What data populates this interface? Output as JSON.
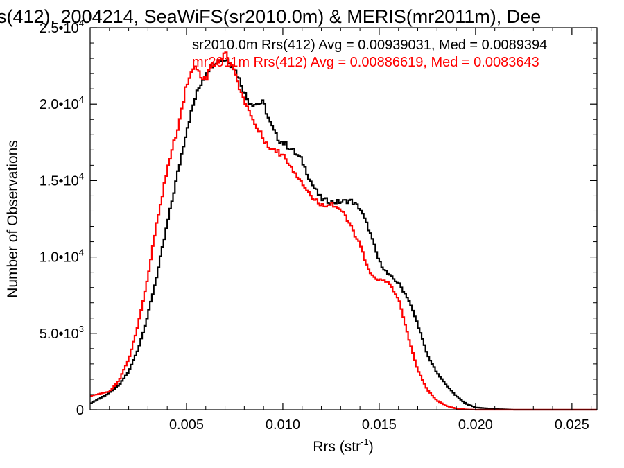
{
  "chart_data": {
    "type": "line",
    "title": "s(412), 2004214, SeaWiFS(sr2010.0m) & MERIS(mr2011m), Dee",
    "xlabel": "Rrs (str",
    "xlabel_sup": "-1",
    "xlabel_tail": ")",
    "ylabel": "Number of Observations",
    "xlim": [
      0.0,
      0.0263
    ],
    "ylim": [
      0,
      25000
    ],
    "xticks": [
      {
        "value": 0.005,
        "label": "0.005"
      },
      {
        "value": 0.01,
        "label": "0.010"
      },
      {
        "value": 0.015,
        "label": "0.015"
      },
      {
        "value": 0.02,
        "label": "0.020"
      },
      {
        "value": 0.025,
        "label": "0.025"
      }
    ],
    "yticks": [
      {
        "value": 0,
        "base": "0",
        "exp": ""
      },
      {
        "value": 5000,
        "base": "5.0•10",
        "exp": "3"
      },
      {
        "value": 10000,
        "base": "1.0•10",
        "exp": "4"
      },
      {
        "value": 15000,
        "base": "1.5•10",
        "exp": "4"
      },
      {
        "value": 20000,
        "base": "2.0•10",
        "exp": "4"
      },
      {
        "value": 25000,
        "base": "2.5•10",
        "exp": "4"
      }
    ],
    "grid": false,
    "step": true,
    "legend_position": "top-right",
    "series": [
      {
        "name": "sr2010.0m Rrs(412) Avg = 0.00939031, Med = 0.0089394",
        "color": "#000000",
        "x": [
          0.0,
          0.001,
          0.0015,
          0.002,
          0.0025,
          0.003,
          0.0035,
          0.004,
          0.0045,
          0.005,
          0.0055,
          0.006,
          0.0065,
          0.0068,
          0.0072,
          0.0075,
          0.0078,
          0.008,
          0.0082,
          0.0085,
          0.009,
          0.0093,
          0.0097,
          0.01,
          0.0105,
          0.011,
          0.0115,
          0.012,
          0.0125,
          0.013,
          0.0135,
          0.014,
          0.0145,
          0.015,
          0.0155,
          0.016,
          0.0165,
          0.017,
          0.0175,
          0.018,
          0.0185,
          0.019,
          0.0195,
          0.02,
          0.021,
          0.022,
          0.024,
          0.0263
        ],
        "y": [
          400,
          1100,
          1600,
          2500,
          4000,
          6200,
          9000,
          12100,
          15200,
          18300,
          20600,
          22100,
          22800,
          22900,
          22900,
          22300,
          21500,
          20800,
          20200,
          20000,
          20100,
          18900,
          17800,
          17500,
          17000,
          16300,
          14800,
          13800,
          13600,
          13600,
          13700,
          13200,
          11700,
          9700,
          8800,
          8300,
          7300,
          5600,
          3600,
          2400,
          1600,
          900,
          400,
          150,
          50,
          0,
          0,
          0
        ]
      },
      {
        "name": "mr2011m Rrs(412) Avg = 0.00886619, Med = 0.0083643",
        "color": "#ff0000",
        "x": [
          0.0,
          0.001,
          0.0015,
          0.002,
          0.0025,
          0.003,
          0.0035,
          0.004,
          0.0045,
          0.0048,
          0.005,
          0.0052,
          0.0055,
          0.0058,
          0.006,
          0.0063,
          0.0066,
          0.007,
          0.0073,
          0.0076,
          0.008,
          0.0085,
          0.009,
          0.0095,
          0.01,
          0.0105,
          0.011,
          0.0115,
          0.012,
          0.0125,
          0.013,
          0.0135,
          0.014,
          0.0145,
          0.015,
          0.0155,
          0.016,
          0.0165,
          0.017,
          0.0175,
          0.018,
          0.0185,
          0.019,
          0.0195,
          0.02,
          0.021,
          0.022,
          0.0263
        ],
        "y": [
          900,
          1200,
          1900,
          3300,
          5600,
          8700,
          12500,
          15700,
          18200,
          20000,
          21300,
          21900,
          22500,
          21800,
          21600,
          22600,
          22700,
          23300,
          22800,
          21600,
          20300,
          18800,
          17700,
          17000,
          16700,
          15800,
          14900,
          13900,
          13400,
          13500,
          13100,
          12100,
          10800,
          8900,
          8500,
          8300,
          7300,
          4800,
          2600,
          1300,
          600,
          250,
          80,
          20,
          0,
          0,
          0,
          0
        ]
      }
    ]
  }
}
